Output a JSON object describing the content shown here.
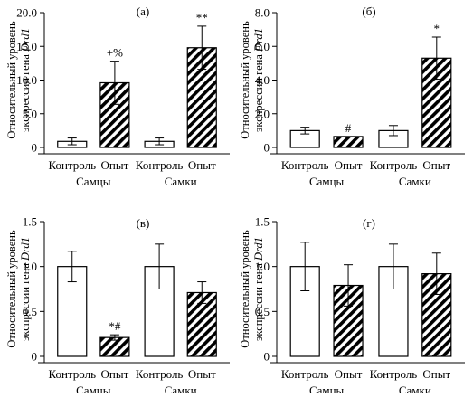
{
  "figure": {
    "ylabel_line1": "Относительный уровень",
    "ylabel_line2_prefix": "экспрессии гена ",
    "ylabel_gene": "Drd1"
  },
  "colors": {
    "control_fill": "#ffffff",
    "hatch": "#000000",
    "axis": "#000000"
  },
  "chart_data": [
    {
      "type": "bar",
      "panel": "(а)",
      "categories": [
        "Контроль",
        "Опыт",
        "Контроль",
        "Опыт"
      ],
      "groups": [
        "Самцы",
        "Самки"
      ],
      "values": [
        0.9,
        9.6,
        0.9,
        14.8
      ],
      "errors": [
        0.5,
        3.2,
        0.5,
        3.2
      ],
      "annotations": [
        "",
        "+%",
        "",
        "**"
      ],
      "patterns": [
        "plain",
        "hatched",
        "plain",
        "hatched"
      ],
      "ylim": [
        0,
        20
      ],
      "yticks": [
        "0",
        "5.0",
        "10.0",
        "15.0",
        "20.0"
      ]
    },
    {
      "type": "bar",
      "panel": "(б)",
      "categories": [
        "Контроль",
        "Опыт",
        "Контроль",
        "Опыт"
      ],
      "groups": [
        "Самцы",
        "Самки"
      ],
      "values": [
        1.0,
        0.65,
        1.0,
        5.3
      ],
      "errors": [
        0.2,
        0.0,
        0.3,
        1.25
      ],
      "annotations": [
        "",
        "#",
        "",
        "*"
      ],
      "patterns": [
        "plain",
        "hatched",
        "plain",
        "hatched"
      ],
      "ylim": [
        0,
        8
      ],
      "yticks": [
        "0",
        "2.0",
        "4.0",
        "6.0",
        "8.0"
      ]
    },
    {
      "type": "bar",
      "panel": "(в)",
      "categories": [
        "Контроль",
        "Опыт",
        "Контроль",
        "Опыт"
      ],
      "groups": [
        "Самцы",
        "Самки"
      ],
      "values": [
        1.0,
        0.21,
        1.0,
        0.71
      ],
      "errors": [
        0.17,
        0.03,
        0.25,
        0.12
      ],
      "annotations": [
        "",
        "*#",
        "",
        ""
      ],
      "patterns": [
        "plain",
        "hatched",
        "plain",
        "hatched"
      ],
      "ylim": [
        0,
        1.5
      ],
      "yticks": [
        "0",
        "0.5",
        "1.0",
        "1.5"
      ]
    },
    {
      "type": "bar",
      "panel": "(г)",
      "categories": [
        "Контроль",
        "Опыт",
        "Контроль",
        "Опыт"
      ],
      "groups": [
        "Самцы",
        "Самки"
      ],
      "values": [
        1.0,
        0.79,
        1.0,
        0.92
      ],
      "errors": [
        0.27,
        0.23,
        0.25,
        0.23
      ],
      "annotations": [
        "",
        "",
        "",
        ""
      ],
      "patterns": [
        "plain",
        "hatched",
        "plain",
        "hatched"
      ],
      "ylim": [
        0,
        1.5
      ],
      "yticks": [
        "0",
        "0.5",
        "1.0",
        "1.5"
      ]
    }
  ]
}
